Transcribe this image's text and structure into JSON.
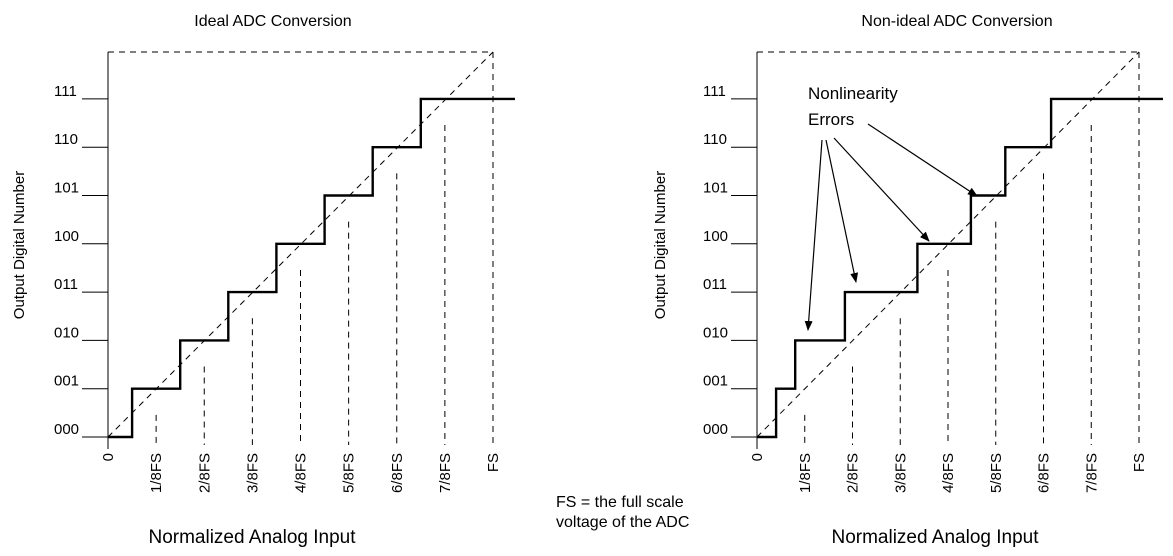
{
  "charts": [
    {
      "title": "Ideal ADC Conversion",
      "ylabel": "Output Digital Number",
      "xlabel": "Normalized Analog Input",
      "y_ticks": [
        "000",
        "001",
        "010",
        "011",
        "100",
        "101",
        "110",
        "111"
      ],
      "x_ticks": [
        "0",
        "1/8FS",
        "2/8FS",
        "3/8FS",
        "4/8FS",
        "5/8FS",
        "6/8FS",
        "7/8FS",
        "FS"
      ],
      "transitions": [
        0.0625,
        0.1875,
        0.3125,
        0.4375,
        0.5625,
        0.6875,
        0.8125
      ]
    },
    {
      "title": "Non-ideal ADC Conversion",
      "ylabel": "Output Digital Number",
      "xlabel": "Normalized Analog Input",
      "y_ticks": [
        "000",
        "001",
        "010",
        "011",
        "100",
        "101",
        "110",
        "111"
      ],
      "x_ticks": [
        "0",
        "1/8FS",
        "2/8FS",
        "3/8FS",
        "4/8FS",
        "5/8FS",
        "6/8FS",
        "7/8FS",
        "FS"
      ],
      "transitions": [
        0.05,
        0.1,
        0.23,
        0.42,
        0.56,
        0.65,
        0.77
      ],
      "annotation": {
        "lines": [
          "Nonlinearity",
          "Errors"
        ]
      }
    }
  ],
  "note": {
    "line1": "FS = the full scale",
    "line2": "voltage of the ADC"
  },
  "colors": {
    "ink": "#000000",
    "background": "#ffffff"
  }
}
